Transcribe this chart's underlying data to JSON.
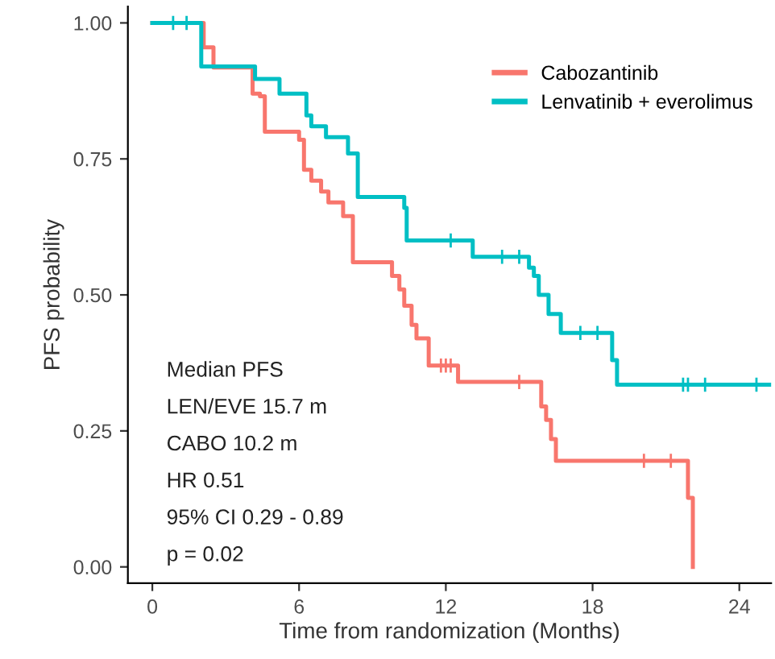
{
  "chart_data": {
    "type": "step",
    "xlabel": "Time from randomization (Months)",
    "ylabel": "PFS probability",
    "xlim": [
      -1,
      25.3
    ],
    "ylim": [
      -0.03,
      1.03
    ],
    "xticks": [
      0,
      6,
      12,
      18,
      24
    ],
    "yticks": [
      {
        "value": 0,
        "label": "0.00"
      },
      {
        "value": 0.25,
        "label": "0.25"
      },
      {
        "value": 0.5,
        "label": "0.50"
      },
      {
        "value": 0.75,
        "label": "0.75"
      },
      {
        "value": 1,
        "label": "1.00"
      }
    ],
    "grid": false,
    "legend": "top right",
    "line_style": "solid",
    "series": [
      {
        "name": "Cabozantinib",
        "color": "#f8766d",
        "x": [
          0,
          2.1,
          2.5,
          4.1,
          4.4,
          4.6,
          6.0,
          6.2,
          6.5,
          6.9,
          7.2,
          7.8,
          8.2,
          9.8,
          10.1,
          10.3,
          10.6,
          10.8,
          11.3,
          12.5,
          15.9,
          16.1,
          16.3,
          16.5,
          21.9,
          22.1
        ],
        "values": [
          1,
          0.955,
          0.918,
          0.87,
          0.865,
          0.8,
          0.785,
          0.73,
          0.71,
          0.69,
          0.67,
          0.645,
          0.56,
          0.535,
          0.51,
          0.48,
          0.445,
          0.42,
          0.37,
          0.34,
          0.295,
          0.27,
          0.235,
          0.195,
          0.127,
          0
        ]
      },
      {
        "name": "Lenvatinib + everolimus",
        "color": "#00bfc4",
        "x": [
          0,
          2.0,
          4.2,
          5.2,
          6.3,
          6.5,
          7.1,
          8.0,
          8.4,
          10.3,
          10.4,
          13.1,
          15.4,
          15.6,
          15.8,
          16.2,
          16.7,
          18.8,
          19.0,
          25.3
        ],
        "values": [
          1,
          0.92,
          0.897,
          0.87,
          0.83,
          0.81,
          0.79,
          0.76,
          0.68,
          0.66,
          0.6,
          0.57,
          0.55,
          0.535,
          0.5,
          0.465,
          0.43,
          0.38,
          0.335,
          0.335
        ]
      },
      {
        "type": "scatter",
        "marker": "cross",
        "color": "#f8766d",
        "x": [
          11.8,
          12.0,
          12.2,
          15.0,
          20.1,
          21.2
        ],
        "values": [
          0.37,
          0.37,
          0.37,
          0.34,
          0.195,
          0.195
        ]
      },
      {
        "type": "scatter",
        "marker": "cross",
        "color": "#00bfc4",
        "x": [
          0.85,
          1.4,
          12.2,
          14.3,
          15.0,
          17.5,
          18.2,
          21.7,
          21.9,
          22.6,
          24.7
        ],
        "values": [
          1,
          1,
          0.6,
          0.57,
          0.57,
          0.43,
          0.43,
          0.335,
          0.335,
          0.335,
          0.335
        ]
      }
    ],
    "annotations": [
      "Median PFS",
      "LEN/EVE 15.7 m",
      "CABO 10.2 m",
      "HR 0.51",
      "95% CI 0.29 - 0.89",
      "p = 0.02"
    ]
  }
}
